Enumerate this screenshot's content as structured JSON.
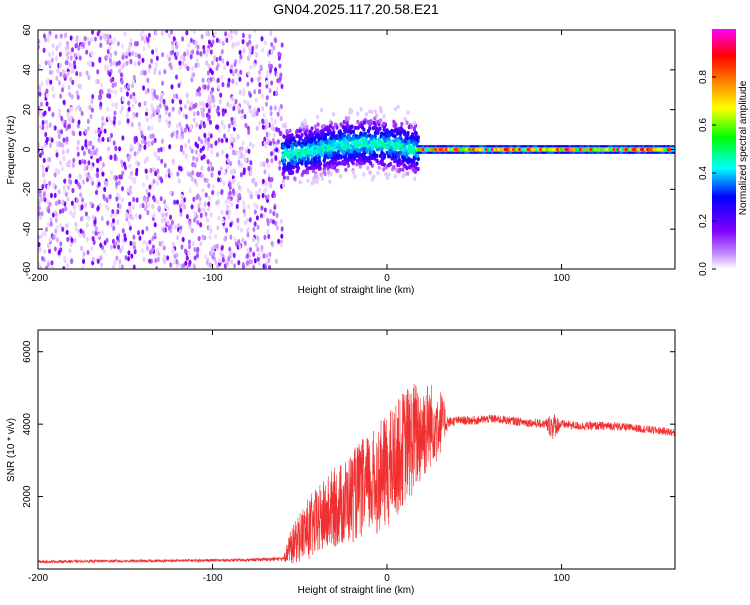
{
  "page": {
    "title": "GN04.2025.117.20.58.E21"
  },
  "chart_data": [
    {
      "type": "heatmap",
      "xlabel": "Height of straight line (km)",
      "ylabel": "Frequency (Hz)",
      "xlim": [
        -200,
        165
      ],
      "ylim": [
        -60,
        60
      ],
      "x_ticks": [
        -200,
        -100,
        0,
        100
      ],
      "x_tick_labels": [
        "-200",
        "-100",
        "0",
        "100"
      ],
      "y_ticks": [
        -60,
        -40,
        -20,
        0,
        20,
        40,
        60
      ],
      "y_tick_labels": [
        "-60",
        "-40",
        "-20",
        "0",
        "20",
        "40",
        "60"
      ],
      "colorbar": {
        "label": "Normalized spectral amplitude",
        "range": [
          0,
          1
        ],
        "ticks": [
          0.0,
          0.2,
          0.4,
          0.6,
          0.8
        ],
        "tick_labels": [
          "0.0",
          "0.2",
          "0.4",
          "0.6",
          "0.8"
        ],
        "colors": [
          "#ffffff",
          "#8000ff",
          "#0000ff",
          "#00ffff",
          "#00ff00",
          "#ffff00",
          "#ff8000",
          "#ff0000",
          "#ff00ff"
        ]
      },
      "regions": [
        {
          "x_range": [
            -200,
            -60
          ],
          "description": "broadband noise",
          "freq_range": [
            -60,
            60
          ],
          "amplitude": [
            0.0,
            0.15
          ]
        },
        {
          "x_range": [
            -60,
            18
          ],
          "description": "spread signal",
          "freq_range": [
            -25,
            15
          ],
          "amplitude": [
            0.1,
            0.45
          ]
        },
        {
          "x_range": [
            18,
            165
          ],
          "description": "coherent line",
          "freq_range": [
            -2,
            2
          ],
          "amplitude": [
            0.4,
            0.95
          ]
        }
      ],
      "grid": false
    },
    {
      "type": "line",
      "xlabel": "Height of straight line (km)",
      "ylabel": "SNR (10 * v/v)",
      "xlim": [
        -200,
        165
      ],
      "ylim": [
        0,
        6600
      ],
      "x_ticks": [
        -200,
        -100,
        0,
        100
      ],
      "x_tick_labels": [
        "-200",
        "-100",
        "0",
        "100"
      ],
      "y_ticks": [
        2000,
        4000,
        6000
      ],
      "y_tick_labels": [
        "2000",
        "4000",
        "6000"
      ],
      "color": "#f03030",
      "series": [
        {
          "x": [
            -200,
            -180,
            -160,
            -140,
            -120,
            -100,
            -80,
            -60,
            -55,
            -50,
            -45,
            -40,
            -35,
            -30,
            -25,
            -20,
            -15,
            -10,
            -5,
            0,
            5,
            10,
            15,
            20,
            25,
            30,
            35,
            40,
            50,
            60,
            70,
            80,
            90,
            95,
            100,
            110,
            120,
            130,
            140,
            150,
            160,
            165
          ],
          "y": [
            200,
            210,
            220,
            220,
            230,
            240,
            250,
            280,
            600,
            900,
            1100,
            1300,
            1500,
            1700,
            1800,
            2000,
            2200,
            2300,
            2500,
            2700,
            3000,
            3400,
            3600,
            3800,
            4000,
            4100,
            4050,
            4100,
            4100,
            4150,
            4100,
            4050,
            4000,
            3950,
            4000,
            3950,
            3950,
            3950,
            3900,
            3850,
            3800,
            3750
          ],
          "noise": [
            40,
            40,
            40,
            40,
            40,
            40,
            40,
            60,
            600,
            900,
            1100,
            1200,
            1300,
            1400,
            1500,
            1600,
            1700,
            1800,
            1900,
            2000,
            2000,
            2000,
            2000,
            1800,
            1500,
            1000,
            150,
            120,
            120,
            120,
            120,
            120,
            120,
            400,
            120,
            120,
            120,
            120,
            110,
            110,
            110,
            110
          ]
        }
      ],
      "grid": false
    }
  ]
}
